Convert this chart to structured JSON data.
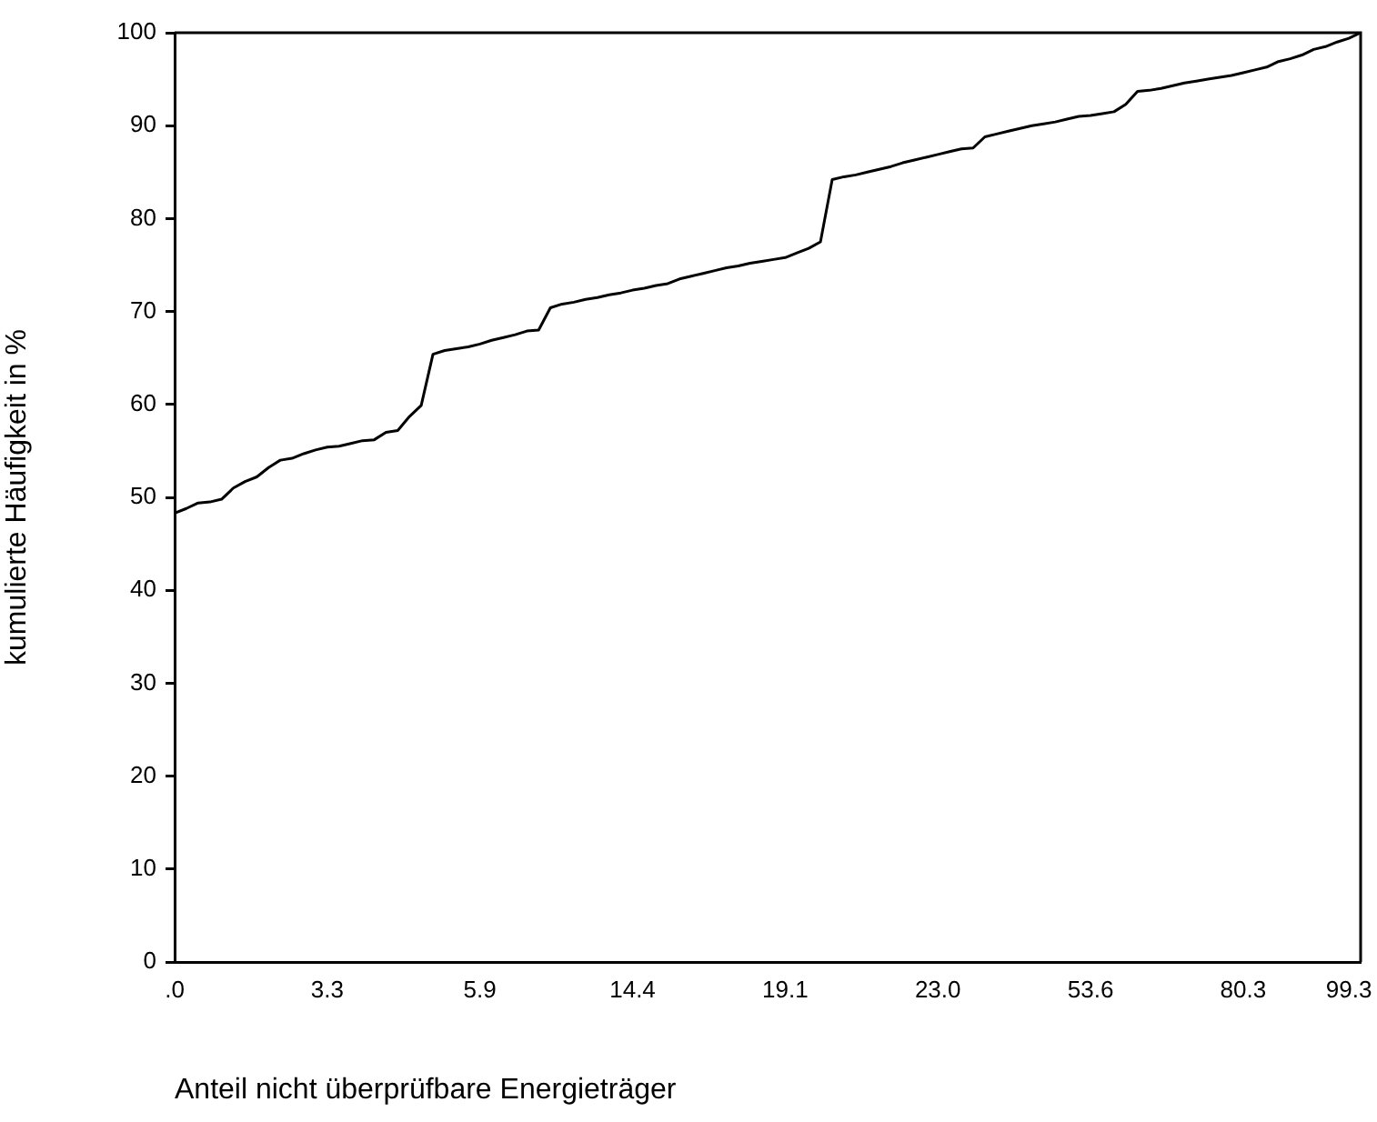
{
  "chart_data": {
    "type": "line",
    "xlabel": "Anteil nicht überprüfbare Energieträger",
    "ylabel": "kumulierte Häufigkeit in %",
    "categories": [
      ".0",
      null,
      null,
      null,
      null,
      null,
      null,
      null,
      null,
      null,
      null,
      null,
      null,
      "3.3",
      null,
      null,
      null,
      null,
      null,
      null,
      null,
      null,
      null,
      null,
      null,
      null,
      "5.9",
      null,
      null,
      null,
      null,
      null,
      null,
      null,
      null,
      null,
      null,
      null,
      null,
      "14.4",
      null,
      null,
      null,
      null,
      null,
      null,
      null,
      null,
      null,
      null,
      null,
      null,
      "19.1",
      null,
      null,
      null,
      null,
      null,
      null,
      null,
      null,
      null,
      null,
      null,
      null,
      "23.0",
      null,
      null,
      null,
      null,
      null,
      null,
      null,
      null,
      null,
      null,
      null,
      null,
      "53.6",
      null,
      null,
      null,
      null,
      null,
      null,
      null,
      null,
      null,
      null,
      null,
      null,
      "80.3",
      null,
      null,
      null,
      null,
      null,
      null,
      null,
      null,
      "99.3",
      null
    ],
    "values": [
      48.3,
      48.8,
      49.4,
      49.5,
      49.8,
      51.0,
      51.7,
      52.2,
      53.2,
      54.0,
      54.2,
      54.7,
      55.1,
      55.4,
      55.5,
      55.8,
      56.1,
      56.2,
      57.0,
      57.2,
      58.7,
      59.9,
      65.4,
      65.8,
      66.0,
      66.2,
      66.5,
      66.9,
      67.2,
      67.5,
      67.9,
      68.0,
      70.4,
      70.8,
      71.0,
      71.3,
      71.5,
      71.8,
      72.0,
      72.3,
      72.5,
      72.8,
      73.0,
      73.5,
      73.8,
      74.1,
      74.4,
      74.7,
      74.9,
      75.2,
      75.4,
      75.6,
      75.8,
      76.3,
      76.8,
      77.5,
      84.2,
      84.5,
      84.7,
      85.0,
      85.3,
      85.6,
      86.0,
      86.3,
      86.6,
      86.9,
      87.2,
      87.5,
      87.6,
      88.8,
      89.1,
      89.4,
      89.7,
      90.0,
      90.2,
      90.4,
      90.7,
      91.0,
      91.1,
      91.3,
      91.5,
      92.3,
      93.7,
      93.8,
      94.0,
      94.3,
      94.6,
      94.8,
      95.0,
      95.2,
      95.4,
      95.7,
      96.0,
      96.3,
      96.9,
      97.2,
      97.6,
      98.2,
      98.5,
      99.0,
      99.4,
      100
    ],
    "color": "#000000",
    "ylim": [
      0,
      100
    ],
    "yticks": [
      0,
      10,
      20,
      30,
      40,
      50,
      60,
      70,
      80,
      90,
      100
    ],
    "grid": false,
    "marker": "none",
    "line_style": "solid",
    "legend": false
  }
}
